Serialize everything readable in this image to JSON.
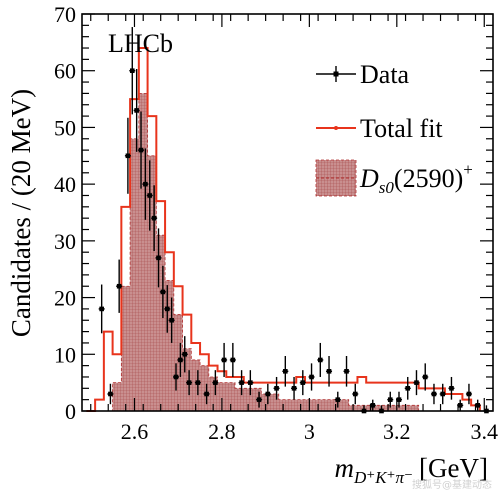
{
  "chart_data": {
    "type": "histogram",
    "experiment_label": "LHCb",
    "xlabel": "m_{D+K+π−} [GeV]",
    "xlabel_parts": {
      "m": "m",
      "sub": "D⁺K⁺π⁻",
      "unit": "[GeV]"
    },
    "ylabel": "Candidates / (20 MeV)",
    "xlim": [
      2.48,
      3.42
    ],
    "ylim": [
      0,
      70
    ],
    "x_ticks": [
      "2.6",
      "2.8",
      "3",
      "3.2",
      "3.4"
    ],
    "x_tick_values": [
      2.6,
      2.8,
      3.0,
      3.2,
      3.4
    ],
    "y_ticks": [
      "0",
      "10",
      "20",
      "30",
      "40",
      "50",
      "60",
      "70"
    ],
    "y_tick_values": [
      0,
      10,
      20,
      30,
      40,
      50,
      60,
      70
    ],
    "legend": [
      {
        "label": "Data",
        "style": "data"
      },
      {
        "label": "Total fit",
        "style": "line"
      },
      {
        "label": "D_{s0}(2590)^{+}",
        "style": "filled",
        "parts": {
          "D": "D",
          "sub": "s0",
          "mid": "(2590)",
          "sup": "+"
        }
      }
    ],
    "legend_position": "top-right",
    "series": [
      {
        "name": "Data",
        "x": [
          2.525,
          2.545,
          2.565,
          2.585,
          2.595,
          2.605,
          2.615,
          2.625,
          2.635,
          2.645,
          2.655,
          2.665,
          2.675,
          2.685,
          2.695,
          2.705,
          2.715,
          2.725,
          2.745,
          2.765,
          2.785,
          2.805,
          2.825,
          2.845,
          2.865,
          2.885,
          2.905,
          2.925,
          2.945,
          2.965,
          2.985,
          3.005,
          3.025,
          3.045,
          3.065,
          3.085,
          3.105,
          3.125,
          3.145,
          3.165,
          3.185,
          3.205,
          3.225,
          3.245,
          3.265,
          3.285,
          3.305,
          3.325,
          3.345,
          3.365,
          3.385,
          3.405
        ],
        "y": [
          18,
          3,
          22,
          45,
          60,
          53,
          46,
          40,
          38,
          34,
          27,
          21,
          18,
          16,
          6,
          9,
          10,
          5,
          5,
          3,
          5,
          9,
          9,
          5,
          5,
          2,
          3,
          4,
          7,
          4,
          5,
          6,
          9,
          7,
          2,
          7,
          3,
          0,
          1,
          0,
          2,
          2,
          4,
          5,
          6,
          3,
          3,
          4,
          1,
          3,
          1,
          0
        ],
        "yerr": [
          4.3,
          1.8,
          4.7,
          6.7,
          7.7,
          7.3,
          6.8,
          6.3,
          6.2,
          5.8,
          5.2,
          4.6,
          4.2,
          4.0,
          2.4,
          3.0,
          3.2,
          2.2,
          2.2,
          1.8,
          2.2,
          3.0,
          3.0,
          2.2,
          2.2,
          1.4,
          1.8,
          2.0,
          2.7,
          2.0,
          2.2,
          2.4,
          3.0,
          2.7,
          1.4,
          2.7,
          1.8,
          1.0,
          1.0,
          1.0,
          1.4,
          1.4,
          2.0,
          2.2,
          2.4,
          1.8,
          1.8,
          2.0,
          1.0,
          1.8,
          1.0,
          1.0
        ]
      },
      {
        "name": "Total fit",
        "bin_edges": [
          2.49,
          2.51,
          2.53,
          2.55,
          2.57,
          2.59,
          2.61,
          2.63,
          2.65,
          2.67,
          2.69,
          2.71,
          2.73,
          2.75,
          2.77,
          2.79,
          2.81,
          2.83,
          2.85,
          2.87,
          2.89,
          2.91,
          2.93,
          2.95,
          2.97,
          2.99,
          3.01,
          3.03,
          3.05,
          3.07,
          3.09,
          3.11,
          3.13,
          3.15,
          3.17,
          3.19,
          3.21,
          3.23,
          3.25,
          3.27,
          3.29,
          3.31,
          3.33,
          3.35,
          3.37,
          3.39
        ],
        "values": [
          0,
          2,
          14,
          10,
          36,
          55,
          64,
          52,
          37,
          28,
          22,
          17,
          12,
          10,
          8,
          7,
          6,
          6,
          5,
          5,
          5,
          5,
          5,
          5,
          6,
          5,
          5,
          5,
          5,
          5,
          5,
          6,
          5,
          5,
          5,
          5,
          5,
          5,
          4,
          4,
          4,
          3,
          3,
          2,
          1,
          0
        ]
      },
      {
        "name": "D_{s0}(2590)^{+}",
        "bin_edges": [
          2.49,
          2.51,
          2.53,
          2.55,
          2.57,
          2.59,
          2.61,
          2.63,
          2.65,
          2.67,
          2.69,
          2.71,
          2.73,
          2.75,
          2.77,
          2.79,
          2.81,
          2.83,
          2.85,
          2.87,
          2.89,
          2.91,
          2.93,
          2.95,
          2.97,
          2.99,
          3.01,
          3.03,
          3.05,
          3.07,
          3.09,
          3.11,
          3.13,
          3.15,
          3.17,
          3.19,
          3.21,
          3.23,
          3.25,
          3.27,
          3.29,
          3.31,
          3.33,
          3.35,
          3.37,
          3.39
        ],
        "values": [
          0,
          0,
          0,
          5,
          22,
          48,
          56,
          45,
          31,
          23,
          17,
          11,
          9,
          8,
          6,
          5,
          5,
          4,
          4,
          4,
          3,
          3,
          2,
          2,
          2,
          2,
          2,
          2,
          2,
          2,
          1,
          1,
          1,
          1,
          1,
          1,
          1,
          1,
          0,
          0,
          0,
          0,
          0,
          0,
          0,
          0
        ]
      }
    ]
  },
  "colors": {
    "fit": "#e8341c",
    "component_fill": "#c98f8f",
    "component_hatch": "#a84a4a",
    "component_edge": "#b03030",
    "data": "#000000"
  },
  "watermark": "搜狐号@基建动态"
}
